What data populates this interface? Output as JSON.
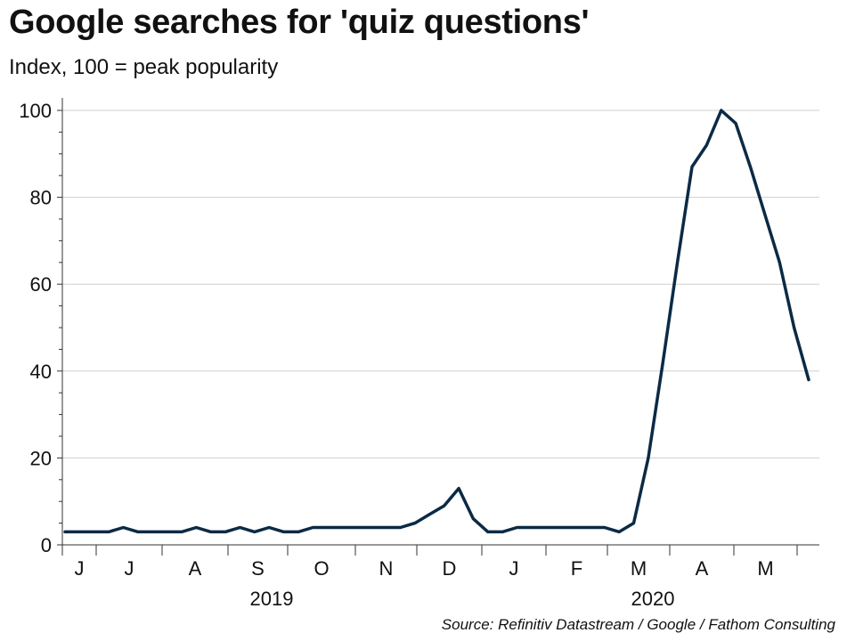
{
  "title": "Google searches for 'quiz questions'",
  "subtitle": "Index, 100 = peak popularity",
  "source": "Source: Refinitiv Datastream / Google / Fathom Consulting",
  "colors": {
    "line": "#0b2a45",
    "grid": "#cfcfcf",
    "axis": "#333333"
  },
  "chart_data": {
    "type": "line",
    "title": "Google searches for 'quiz questions'",
    "ylabel": "Index, 100 = peak popularity",
    "ylim": [
      0,
      100
    ],
    "yticks": [
      0,
      20,
      40,
      60,
      80,
      100
    ],
    "grid": true,
    "month_ticks": [
      "J",
      "J",
      "A",
      "S",
      "O",
      "N",
      "D",
      "J",
      "F",
      "M",
      "A",
      "M"
    ],
    "year_labels": [
      "2019",
      "2020"
    ],
    "series": [
      {
        "values": [
          3,
          3,
          3,
          3,
          4,
          3,
          3,
          3,
          3,
          4,
          3,
          3,
          4,
          3,
          4,
          3,
          3,
          4,
          4,
          4,
          4,
          4,
          4,
          4,
          5,
          7,
          9,
          13,
          6,
          3,
          3,
          4,
          4,
          4,
          4,
          4,
          4,
          4,
          3,
          5,
          20,
          42,
          65,
          87,
          92,
          100,
          97,
          87,
          76,
          65,
          50,
          38
        ]
      }
    ]
  }
}
